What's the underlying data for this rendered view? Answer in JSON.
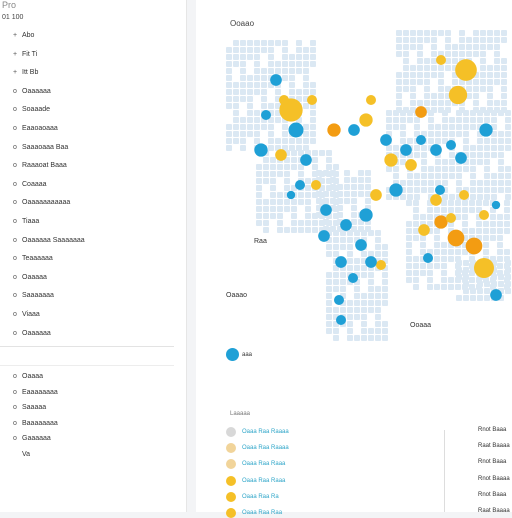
{
  "sidebar": {
    "brand": "Pro",
    "version": "01  100",
    "items": [
      {
        "mark": "+",
        "label": "Abo"
      },
      {
        "mark": "+",
        "label": "Fit         Ti"
      },
      {
        "mark": "+",
        "label": "Itt      Bb"
      },
      {
        "mark": "o",
        "label": "Oaaaaaa"
      },
      {
        "mark": "o",
        "label": "Soaaade"
      },
      {
        "mark": "o",
        "label": "Eaaoaoaaa"
      },
      {
        "mark": "o",
        "label": "Saaaoaaa Baa"
      },
      {
        "mark": "o",
        "label": "Raaaoat Baaa"
      },
      {
        "mark": "o",
        "label": "Coaaaa"
      },
      {
        "mark": "o",
        "label": "Oaaaaaaaaaaa"
      },
      {
        "mark": "o",
        "label": "Tiaaa"
      },
      {
        "mark": "o",
        "label": "Oaaaaaa Saaaaaaa"
      },
      {
        "mark": "o",
        "label": "Teaaaaaa"
      },
      {
        "mark": "o",
        "label": "Oaaaaa"
      },
      {
        "mark": "o",
        "label": "Saaaaaaa"
      },
      {
        "mark": "o",
        "label": "Viaaa"
      },
      {
        "mark": "o",
        "label": "Oaaaaaa"
      }
    ],
    "items2": [
      {
        "mark": "o",
        "label": "Oaaaa"
      },
      {
        "mark": "o",
        "label": "Eaaaaaaaa"
      },
      {
        "mark": "o",
        "label": "Saaaaa"
      },
      {
        "mark": "o",
        "label": "Baaaaaaaa"
      },
      {
        "mark": "o",
        "label": "Gaaaaaa"
      },
      {
        "mark": "",
        "label": "Va"
      }
    ]
  },
  "main": {
    "map_title": "Ooaao",
    "label_left": "Raa",
    "label_sea": "Ooaaa",
    "label_right": "Oaaao",
    "legend_label": "aaa",
    "panel_title": "Laaaaa",
    "list": [
      {
        "label": "Oaaa Raa Raaaa",
        "color": "#d8d8d8"
      },
      {
        "label": "Oaaa Raa Raaaa",
        "color": "#f1d49a"
      },
      {
        "label": "Oaaa Raa Raaa",
        "color": "#f1d49a"
      },
      {
        "label": "Oaaa Raa Raaa",
        "color": "#f5c027"
      },
      {
        "label": "Oaaa Raa Ra",
        "color": "#f5c027"
      },
      {
        "label": "Oaaa Raa Raa",
        "color": "#f5c027"
      }
    ],
    "right_col": [
      "Rnot Baaa",
      "Raat Baaaa",
      "Rnot Baaa",
      "Rnot Baaaa",
      "Rnot Baaa",
      "Raat Baaaa"
    ]
  },
  "colors": {
    "blue": "#1fa0d6",
    "yellow": "#f5c027",
    "orange": "#f39c12",
    "land": "#dbe8f3"
  }
}
